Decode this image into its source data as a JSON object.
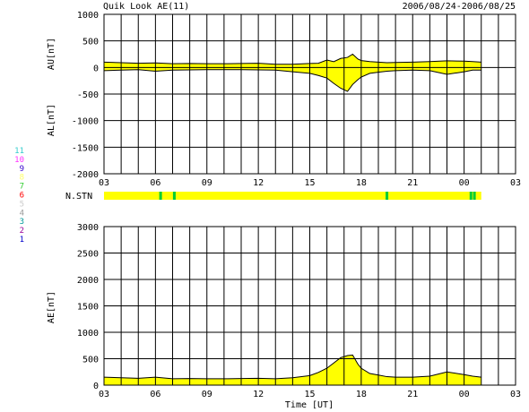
{
  "header": {
    "title": "Quik Look AE(11)",
    "date_range": "2006/08/24-2006/08/25"
  },
  "colors": {
    "fill": "#ffff00",
    "trace": "#000000",
    "grid": "#000000",
    "station_strip_base": "#ffff00",
    "station_strip_dropout": "#00cc33"
  },
  "chart_data": [
    {
      "type": "area",
      "name": "AU/AL panel",
      "ylabel_upper": "AU[nT]",
      "ylabel_lower": "AL[nT]",
      "ylim": [
        -2000,
        1000
      ],
      "yticks": [
        1000,
        500,
        0,
        -500,
        -1000,
        -1500,
        -2000
      ],
      "xlim_hours_UT": [
        3,
        27
      ],
      "xtick_labels": [
        "03",
        "06",
        "09",
        "12",
        "15",
        "18",
        "21",
        "00",
        "03"
      ],
      "grid": true,
      "x_hours_UT": [
        3,
        4,
        5,
        6,
        7,
        8,
        9,
        10,
        11,
        12,
        13,
        14,
        15,
        15.5,
        16,
        16.4,
        16.8,
        17.2,
        17.5,
        17.8,
        18,
        18.5,
        19,
        19.5,
        20,
        21,
        22,
        23,
        24,
        24.5,
        25
      ],
      "series": [
        {
          "role": "AU",
          "values": [
            100,
            90,
            80,
            85,
            70,
            75,
            70,
            70,
            75,
            80,
            60,
            60,
            75,
            80,
            140,
            110,
            170,
            190,
            250,
            160,
            130,
            110,
            100,
            90,
            95,
            100,
            110,
            125,
            120,
            110,
            100
          ]
        },
        {
          "role": "AL",
          "values": [
            -60,
            -50,
            -40,
            -70,
            -50,
            -45,
            -40,
            -40,
            -40,
            -45,
            -50,
            -80,
            -110,
            -150,
            -200,
            -300,
            -390,
            -450,
            -320,
            -230,
            -180,
            -110,
            -90,
            -70,
            -60,
            -50,
            -60,
            -130,
            -80,
            -50,
            -50
          ]
        }
      ]
    },
    {
      "type": "area",
      "name": "station strip",
      "label": "N.STN",
      "xlim_hours_UT": [
        3,
        27
      ],
      "data_end_hour_UT": 25,
      "dropout_hours_UT": [
        6.3,
        7.1,
        19.5,
        24.4,
        24.6
      ]
    },
    {
      "type": "area",
      "name": "AE panel",
      "ylabel": "AE[nT]",
      "xlabel": "Time [UT]",
      "ylim": [
        0,
        3000
      ],
      "yticks": [
        3000,
        2500,
        2000,
        1500,
        1000,
        500,
        0
      ],
      "xlim_hours_UT": [
        3,
        27
      ],
      "xtick_labels": [
        "03",
        "06",
        "09",
        "12",
        "15",
        "18",
        "21",
        "00",
        "03"
      ],
      "grid": true,
      "x_hours_UT": [
        3,
        4,
        5,
        6,
        7,
        8,
        9,
        10,
        11,
        12,
        13,
        14,
        15,
        15.5,
        16,
        16.4,
        16.8,
        17.2,
        17.5,
        17.8,
        18,
        18.5,
        19,
        19.5,
        20,
        21,
        22,
        23,
        24,
        24.5,
        25
      ],
      "values": [
        150,
        140,
        130,
        150,
        120,
        125,
        120,
        120,
        125,
        130,
        120,
        140,
        180,
        240,
        320,
        420,
        520,
        560,
        570,
        400,
        320,
        220,
        190,
        160,
        150,
        150,
        170,
        250,
        200,
        170,
        150
      ]
    }
  ],
  "legend": {
    "note": "station count scale",
    "items": [
      {
        "label": "11",
        "color": "#33cccc"
      },
      {
        "label": "10",
        "color": "#ff33ff"
      },
      {
        "label": "9",
        "color": "#3300cc"
      },
      {
        "label": "8",
        "color": "#ffff66"
      },
      {
        "label": "7",
        "color": "#33cc33"
      },
      {
        "label": "6",
        "color": "#ff0000"
      },
      {
        "label": "5",
        "color": "#cccccc"
      },
      {
        "label": "4",
        "color": "#999999"
      },
      {
        "label": "3",
        "color": "#009999"
      },
      {
        "label": "2",
        "color": "#990099"
      },
      {
        "label": "1",
        "color": "#0000cc"
      }
    ]
  }
}
